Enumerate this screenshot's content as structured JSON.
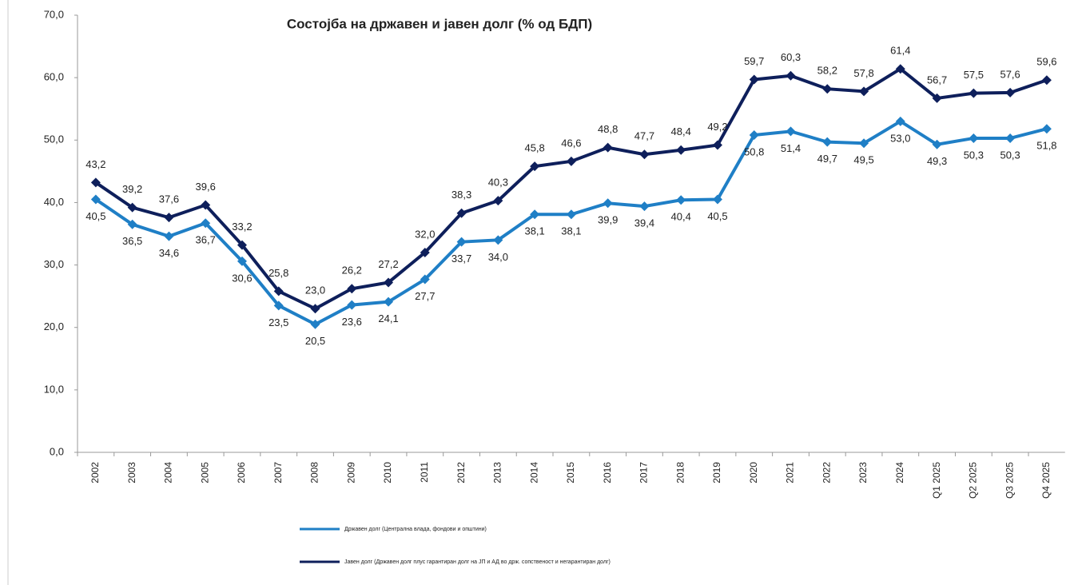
{
  "chart_data": {
    "type": "line",
    "title": "Состојба на државен и јавен долг (% од БДП)",
    "categories": [
      "2002",
      "2003",
      "2004",
      "2005",
      "2006",
      "2007",
      "2008",
      "2009",
      "2010",
      "2011",
      "2012",
      "2013",
      "2014",
      "2015",
      "2016",
      "2017",
      "2018",
      "2019",
      "2020",
      "2021",
      "2022",
      "2023",
      "2024",
      "Q1 2025",
      "Q2 2025",
      "Q3 2025",
      "Q4 2025"
    ],
    "series": [
      {
        "name": "Државен долг (Централна влада, фондови и општини)",
        "color": "#1f7fc6",
        "values": [
          40.5,
          36.5,
          34.6,
          36.7,
          30.6,
          23.5,
          20.5,
          23.6,
          24.1,
          27.7,
          33.7,
          34.0,
          38.1,
          38.1,
          39.9,
          39.4,
          40.4,
          40.5,
          50.8,
          51.4,
          49.7,
          49.5,
          53.0,
          49.3,
          50.3,
          50.3,
          51.8
        ],
        "value_labels": [
          "40,5",
          "36,5",
          "34,6",
          "36,7",
          "30,6",
          "23,5",
          "20,5",
          "23,6",
          "24,1",
          "27,7",
          "33,7",
          "34,0",
          "38,1",
          "38,1",
          "39,9",
          "39,4",
          "40,4",
          "40,5",
          "50,8",
          "51,4",
          "49,7",
          "49,5",
          "53,0",
          "49,3",
          "50,3",
          "50,3",
          "51,8"
        ]
      },
      {
        "name": "Јавен долг (Државен долг плус гарантиран долг на ЈП и АД во држ. сопственост и негарантиран долг)",
        "color": "#0e1f5b",
        "values": [
          43.2,
          39.2,
          37.6,
          39.6,
          33.2,
          25.8,
          23.0,
          26.2,
          27.2,
          32.0,
          38.3,
          40.3,
          45.8,
          46.6,
          48.8,
          47.7,
          48.4,
          49.2,
          59.7,
          60.3,
          58.2,
          57.8,
          61.4,
          56.7,
          57.5,
          57.6,
          59.6
        ],
        "value_labels": [
          "43,2",
          "39,2",
          "37,6",
          "39,6",
          "33,2",
          "25,8",
          "23,0",
          "26,2",
          "27,2",
          "32,0",
          "38,3",
          "40,3",
          "45,8",
          "46,6",
          "48,8",
          "47,7",
          "48,4",
          "49,2",
          "59,7",
          "60,3",
          "58,2",
          "57,8",
          "61,4",
          "56,7",
          "57,5",
          "57,6",
          "59,6"
        ]
      }
    ],
    "ylim": [
      0,
      70
    ],
    "yticks": [
      {
        "value": 0,
        "label": "0,0"
      },
      {
        "value": 10,
        "label": "10,0"
      },
      {
        "value": 20,
        "label": "20,0"
      },
      {
        "value": 30,
        "label": "30,0"
      },
      {
        "value": 40,
        "label": "40,0"
      },
      {
        "value": 50,
        "label": "50,0"
      },
      {
        "value": 60,
        "label": "60,0"
      },
      {
        "value": 70,
        "label": "70,0"
      }
    ],
    "grid": false
  }
}
